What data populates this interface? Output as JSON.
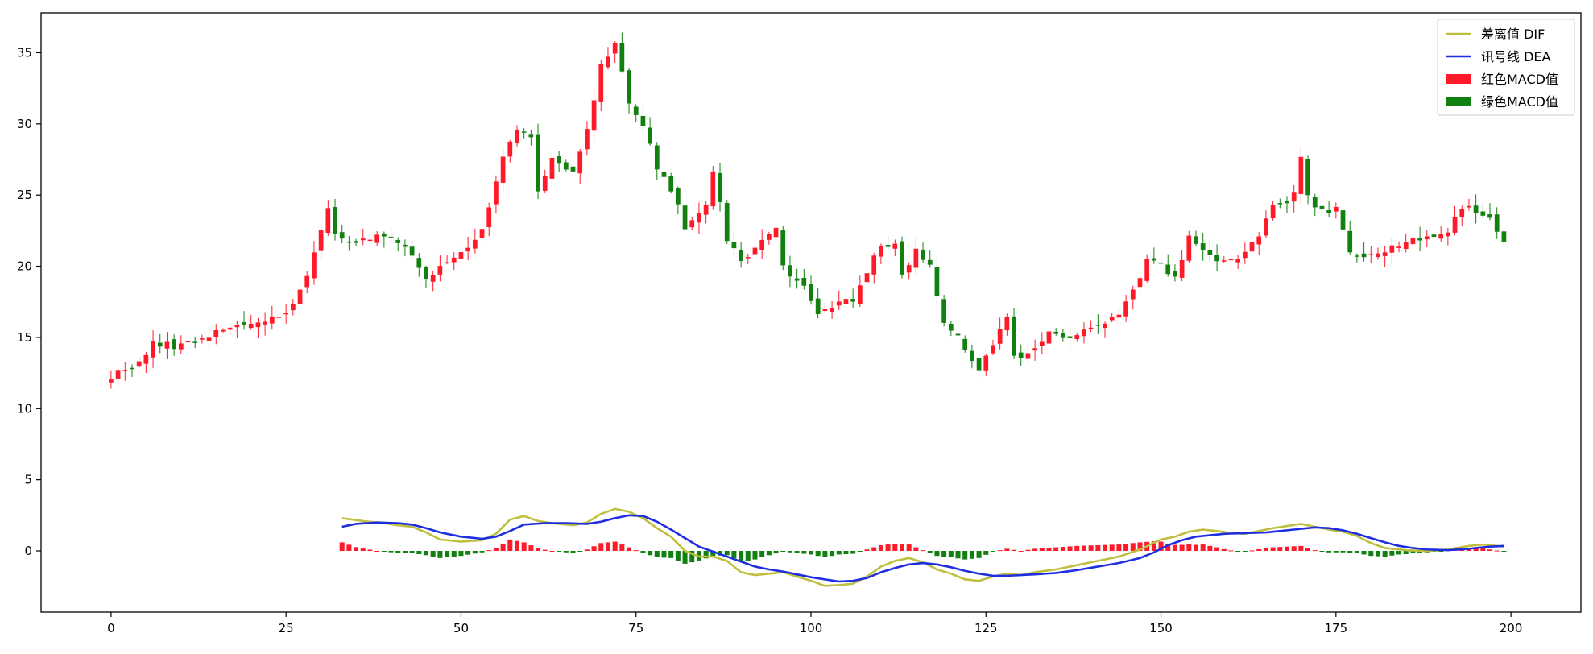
{
  "chart_data": {
    "type": "line",
    "title": "",
    "xlabel": "",
    "ylabel": "",
    "xlim": [
      -10,
      210
    ],
    "ylim": [
      -4.3,
      37.8
    ],
    "grid": false,
    "legend_position": "top-right",
    "x_ticks": [
      0,
      25,
      50,
      75,
      100,
      125,
      150,
      175,
      200
    ],
    "y_ticks": [
      0,
      5,
      10,
      15,
      20,
      25,
      30,
      35
    ],
    "x_tick_labels": [
      "0",
      "25",
      "50",
      "75",
      "100",
      "125",
      "150",
      "175",
      "200"
    ],
    "y_tick_labels": [
      "0",
      "5",
      "10",
      "15",
      "20",
      "25",
      "30",
      "35"
    ],
    "legend": [
      {
        "label": "差离值 DIF",
        "kind": "line",
        "color": "#bfbf3f"
      },
      {
        "label": "讯号线 DEA",
        "kind": "line",
        "color": "#1f2fe0"
      },
      {
        "label": "红色MACD值",
        "kind": "bar",
        "color": "#ff1a2a"
      },
      {
        "label": "绿色MACD值",
        "kind": "bar",
        "color": "#118011"
      }
    ],
    "colors": {
      "up": "#ff1a2a",
      "down": "#118011",
      "dif": "#bfbf3f",
      "dea": "#1f2fe0"
    },
    "price_close_anchors": [
      [
        0,
        12.3
      ],
      [
        4,
        13.2
      ],
      [
        6,
        14.5
      ],
      [
        10,
        14.4
      ],
      [
        15,
        15.4
      ],
      [
        20,
        16.1
      ],
      [
        25,
        16.5
      ],
      [
        28,
        19.5
      ],
      [
        31,
        24.0
      ],
      [
        32,
        22.5
      ],
      [
        34,
        21.5
      ],
      [
        38,
        22.3
      ],
      [
        42,
        21.5
      ],
      [
        45,
        19.0
      ],
      [
        50,
        21.0
      ],
      [
        53,
        22.5
      ],
      [
        56,
        27.8
      ],
      [
        58,
        29.5
      ],
      [
        60,
        29.0
      ],
      [
        61,
        25.5
      ],
      [
        63,
        27.5
      ],
      [
        66,
        26.8
      ],
      [
        68,
        29.5
      ],
      [
        70,
        34.0
      ],
      [
        72,
        35.5
      ],
      [
        74,
        31.5
      ],
      [
        76,
        29.8
      ],
      [
        78,
        27.0
      ],
      [
        80,
        25.5
      ],
      [
        82,
        22.8
      ],
      [
        85,
        24.5
      ],
      [
        86,
        26.8
      ],
      [
        88,
        22.0
      ],
      [
        90,
        20.4
      ],
      [
        93,
        21.8
      ],
      [
        95,
        22.6
      ],
      [
        96,
        20.0
      ],
      [
        99,
        18.5
      ],
      [
        101,
        16.5
      ],
      [
        103,
        17.3
      ],
      [
        106,
        17.6
      ],
      [
        110,
        21.5
      ],
      [
        112,
        21.7
      ],
      [
        113,
        19.5
      ],
      [
        115,
        21.0
      ],
      [
        117,
        20.0
      ],
      [
        119,
        16.0
      ],
      [
        121,
        15.0
      ],
      [
        122,
        14.0
      ],
      [
        124,
        12.8
      ],
      [
        126,
        14.5
      ],
      [
        128,
        16.5
      ],
      [
        129,
        13.5
      ],
      [
        131,
        14.0
      ],
      [
        134,
        15.3
      ],
      [
        137,
        15.0
      ],
      [
        140,
        15.6
      ],
      [
        144,
        16.5
      ],
      [
        146,
        18.5
      ],
      [
        148,
        20.3
      ],
      [
        150,
        20.0
      ],
      [
        152,
        19.3
      ],
      [
        154,
        22.0
      ],
      [
        156,
        21.0
      ],
      [
        158,
        20.6
      ],
      [
        161,
        20.5
      ],
      [
        164,
        22.0
      ],
      [
        166,
        24.5
      ],
      [
        168,
        24.2
      ],
      [
        169,
        25.3
      ],
      [
        170,
        27.5
      ],
      [
        171,
        24.8
      ],
      [
        173,
        23.8
      ],
      [
        175,
        24.0
      ],
      [
        177,
        21.0
      ],
      [
        179,
        20.5
      ],
      [
        181,
        21.0
      ],
      [
        184,
        21.5
      ],
      [
        186,
        21.8
      ],
      [
        189,
        21.9
      ],
      [
        191,
        22.5
      ],
      [
        193,
        24.0
      ],
      [
        195,
        24.0
      ],
      [
        197,
        23.5
      ],
      [
        199,
        21.8
      ]
    ],
    "dif_anchors": [
      [
        33,
        2.3
      ],
      [
        36,
        2.1
      ],
      [
        39,
        1.95
      ],
      [
        41,
        1.8
      ],
      [
        43,
        1.7
      ],
      [
        45,
        1.3
      ],
      [
        47,
        0.8
      ],
      [
        50,
        0.65
      ],
      [
        53,
        0.75
      ],
      [
        55,
        1.2
      ],
      [
        57,
        2.2
      ],
      [
        59,
        2.45
      ],
      [
        61,
        2.1
      ],
      [
        63,
        1.95
      ],
      [
        66,
        1.8
      ],
      [
        68,
        2.0
      ],
      [
        70,
        2.6
      ],
      [
        72,
        2.95
      ],
      [
        74,
        2.75
      ],
      [
        76,
        2.3
      ],
      [
        78,
        1.6
      ],
      [
        80,
        1.0
      ],
      [
        82,
        0.0
      ],
      [
        84,
        -0.4
      ],
      [
        86,
        -0.4
      ],
      [
        88,
        -0.7
      ],
      [
        90,
        -1.5
      ],
      [
        92,
        -1.7
      ],
      [
        94,
        -1.6
      ],
      [
        96,
        -1.5
      ],
      [
        98,
        -1.8
      ],
      [
        100,
        -2.1
      ],
      [
        102,
        -2.45
      ],
      [
        104,
        -2.4
      ],
      [
        106,
        -2.3
      ],
      [
        108,
        -1.8
      ],
      [
        110,
        -1.1
      ],
      [
        112,
        -0.7
      ],
      [
        114,
        -0.5
      ],
      [
        116,
        -0.8
      ],
      [
        118,
        -1.3
      ],
      [
        120,
        -1.6
      ],
      [
        122,
        -2.0
      ],
      [
        124,
        -2.1
      ],
      [
        126,
        -1.8
      ],
      [
        128,
        -1.6
      ],
      [
        130,
        -1.7
      ],
      [
        132,
        -1.5
      ],
      [
        135,
        -1.3
      ],
      [
        138,
        -1.0
      ],
      [
        141,
        -0.7
      ],
      [
        144,
        -0.4
      ],
      [
        147,
        0.1
      ],
      [
        150,
        0.8
      ],
      [
        152,
        1.0
      ],
      [
        154,
        1.35
      ],
      [
        156,
        1.5
      ],
      [
        158,
        1.4
      ],
      [
        160,
        1.25
      ],
      [
        162,
        1.2
      ],
      [
        164,
        1.4
      ],
      [
        166,
        1.6
      ],
      [
        168,
        1.75
      ],
      [
        170,
        1.9
      ],
      [
        172,
        1.7
      ],
      [
        174,
        1.5
      ],
      [
        176,
        1.35
      ],
      [
        178,
        1.05
      ],
      [
        180,
        0.55
      ],
      [
        182,
        0.2
      ],
      [
        185,
        0.05
      ],
      [
        188,
        0.0
      ],
      [
        191,
        0.1
      ],
      [
        194,
        0.35
      ],
      [
        196,
        0.45
      ],
      [
        199,
        0.3
      ]
    ],
    "dea_anchors": [
      [
        33,
        1.7
      ],
      [
        35,
        1.9
      ],
      [
        38,
        2.0
      ],
      [
        41,
        1.95
      ],
      [
        43,
        1.85
      ],
      [
        45,
        1.6
      ],
      [
        47,
        1.3
      ],
      [
        50,
        1.0
      ],
      [
        53,
        0.85
      ],
      [
        55,
        1.0
      ],
      [
        57,
        1.4
      ],
      [
        59,
        1.85
      ],
      [
        62,
        1.95
      ],
      [
        65,
        1.95
      ],
      [
        68,
        1.9
      ],
      [
        70,
        2.05
      ],
      [
        72,
        2.3
      ],
      [
        74,
        2.5
      ],
      [
        76,
        2.45
      ],
      [
        78,
        2.05
      ],
      [
        80,
        1.5
      ],
      [
        82,
        0.9
      ],
      [
        84,
        0.3
      ],
      [
        86,
        -0.05
      ],
      [
        88,
        -0.4
      ],
      [
        90,
        -0.75
      ],
      [
        92,
        -1.1
      ],
      [
        94,
        -1.3
      ],
      [
        96,
        -1.45
      ],
      [
        98,
        -1.65
      ],
      [
        100,
        -1.85
      ],
      [
        102,
        -2.0
      ],
      [
        104,
        -2.15
      ],
      [
        106,
        -2.1
      ],
      [
        108,
        -1.9
      ],
      [
        110,
        -1.5
      ],
      [
        112,
        -1.2
      ],
      [
        114,
        -0.95
      ],
      [
        116,
        -0.85
      ],
      [
        118,
        -0.95
      ],
      [
        120,
        -1.15
      ],
      [
        122,
        -1.4
      ],
      [
        124,
        -1.6
      ],
      [
        126,
        -1.75
      ],
      [
        128,
        -1.75
      ],
      [
        130,
        -1.7
      ],
      [
        132,
        -1.65
      ],
      [
        135,
        -1.55
      ],
      [
        138,
        -1.35
      ],
      [
        141,
        -1.1
      ],
      [
        144,
        -0.85
      ],
      [
        147,
        -0.5
      ],
      [
        149,
        -0.1
      ],
      [
        151,
        0.4
      ],
      [
        153,
        0.75
      ],
      [
        155,
        1.0
      ],
      [
        157,
        1.1
      ],
      [
        159,
        1.2
      ],
      [
        162,
        1.25
      ],
      [
        165,
        1.3
      ],
      [
        168,
        1.45
      ],
      [
        170,
        1.55
      ],
      [
        172,
        1.65
      ],
      [
        174,
        1.6
      ],
      [
        176,
        1.45
      ],
      [
        178,
        1.2
      ],
      [
        180,
        0.9
      ],
      [
        182,
        0.6
      ],
      [
        184,
        0.35
      ],
      [
        186,
        0.2
      ],
      [
        188,
        0.1
      ],
      [
        191,
        0.05
      ],
      [
        194,
        0.15
      ],
      [
        197,
        0.3
      ],
      [
        199,
        0.35
      ]
    ],
    "macd_x_range": [
      33,
      199
    ]
  }
}
